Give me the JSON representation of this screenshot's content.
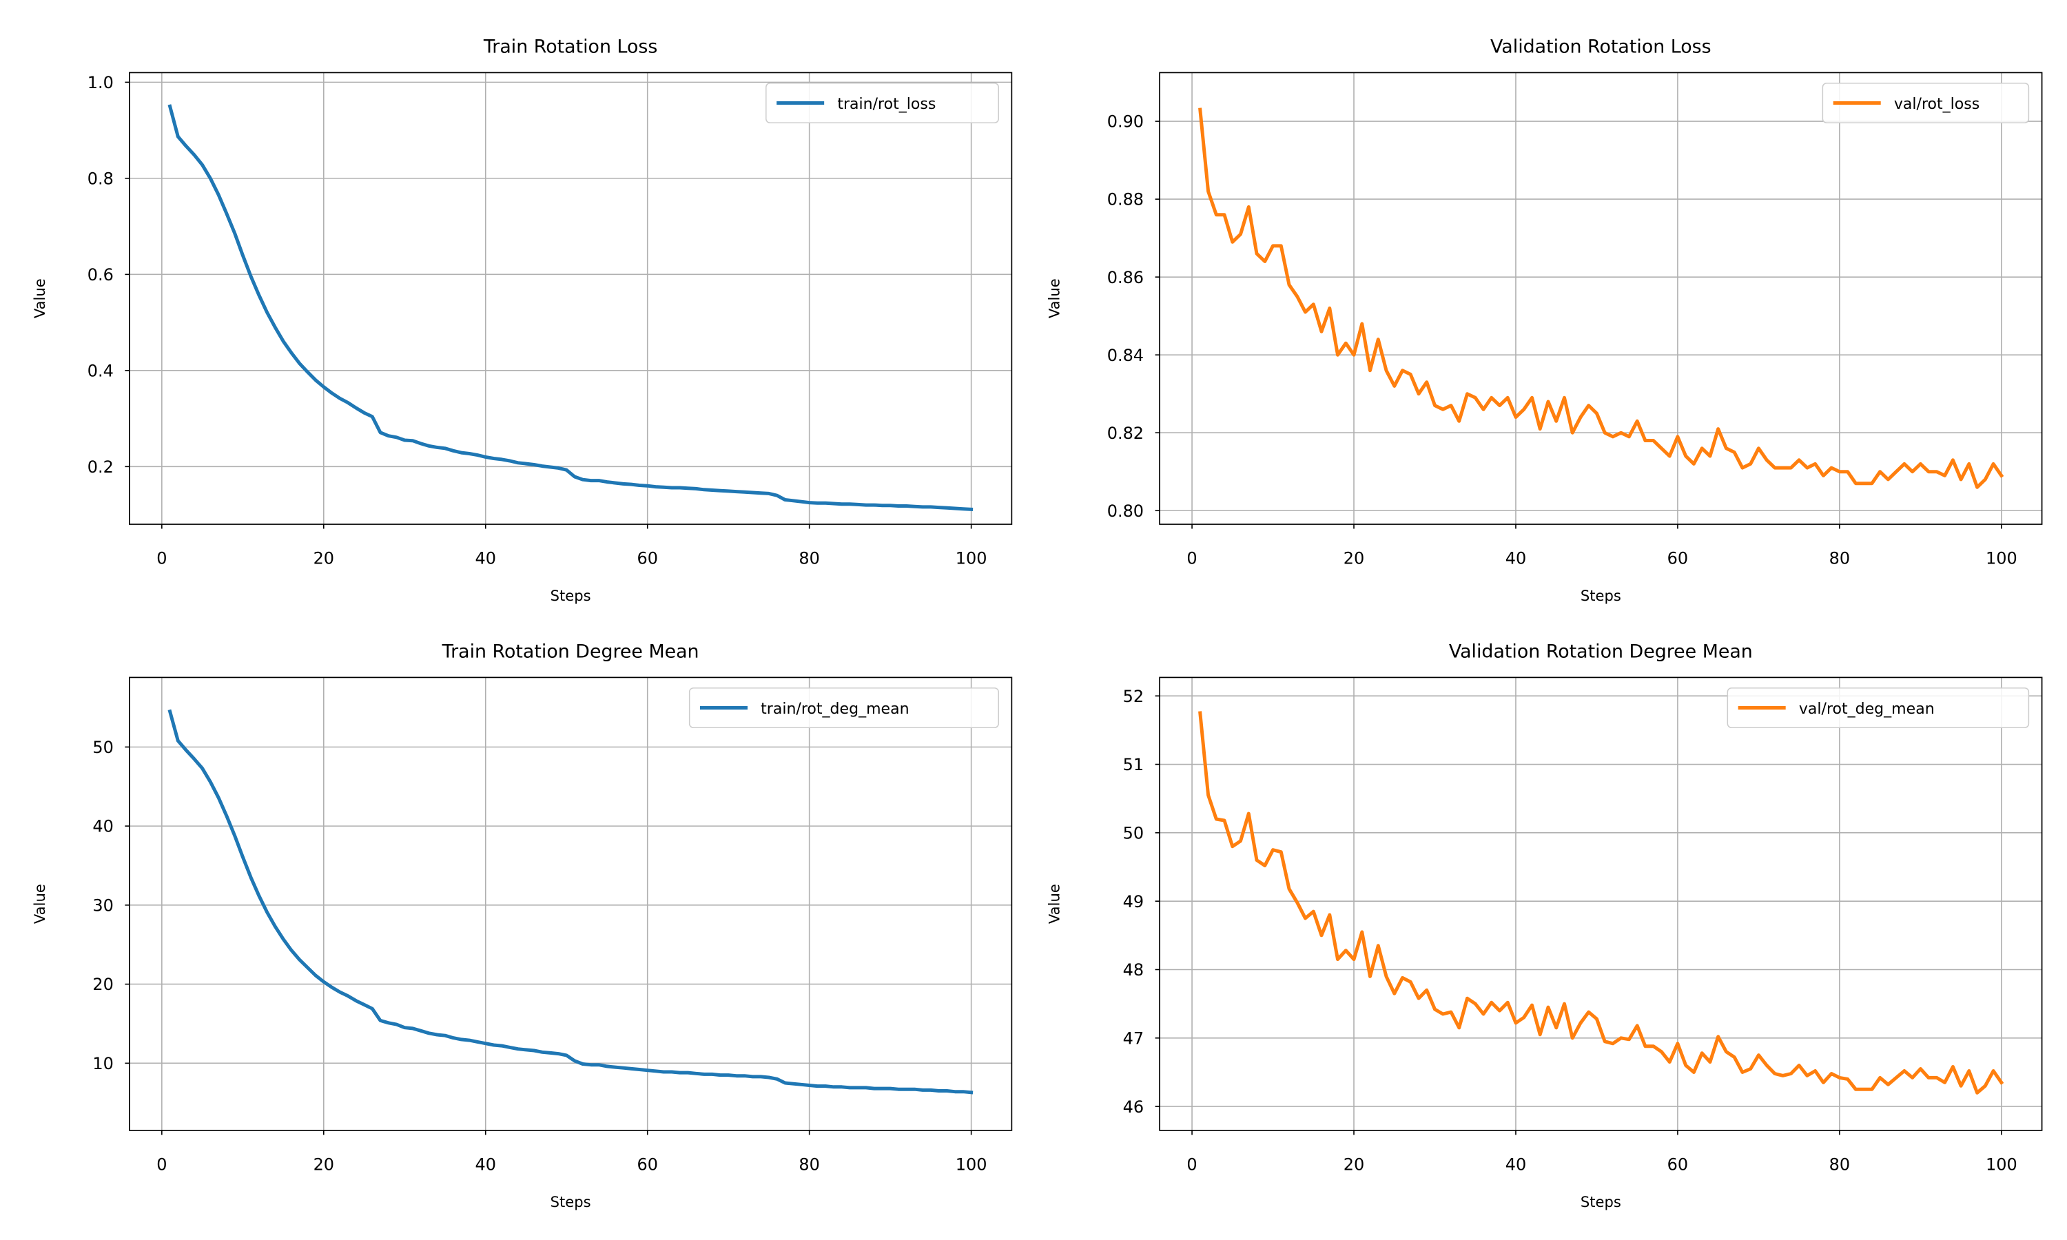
{
  "chart_data": [
    {
      "type": "line",
      "title": "Train Rotation Loss",
      "xlabel": "Steps",
      "ylabel": "Value",
      "xlim": [
        -4,
        105
      ],
      "ylim": [
        0.08,
        1.02
      ],
      "xticks": [
        0,
        20,
        40,
        60,
        80,
        100
      ],
      "yticks": [
        0.2,
        0.4,
        0.6,
        0.8,
        1.0
      ],
      "ytick_labels": [
        "0.2",
        "0.4",
        "0.6",
        "0.8",
        "1.0"
      ],
      "grid": true,
      "legend": "top-right",
      "series": [
        {
          "name": "train/rot_loss",
          "color": "#1f77b4",
          "x": [
            1,
            2,
            3,
            4,
            5,
            6,
            7,
            8,
            9,
            10,
            11,
            12,
            13,
            14,
            15,
            16,
            17,
            18,
            19,
            20,
            21,
            22,
            23,
            24,
            25,
            26,
            27,
            28,
            29,
            30,
            31,
            32,
            33,
            34,
            35,
            36,
            37,
            38,
            39,
            40,
            41,
            42,
            43,
            44,
            45,
            46,
            47,
            48,
            49,
            50,
            51,
            52,
            53,
            54,
            55,
            56,
            57,
            58,
            59,
            60,
            61,
            62,
            63,
            64,
            65,
            66,
            67,
            68,
            69,
            70,
            71,
            72,
            73,
            74,
            75,
            76,
            77,
            78,
            79,
            80,
            81,
            82,
            83,
            84,
            85,
            86,
            87,
            88,
            89,
            90,
            91,
            92,
            93,
            94,
            95,
            96,
            97,
            98,
            99,
            100
          ],
          "y": [
            0.95,
            0.887,
            0.867,
            0.849,
            0.828,
            0.8,
            0.766,
            0.727,
            0.686,
            0.64,
            0.596,
            0.557,
            0.521,
            0.49,
            0.461,
            0.437,
            0.415,
            0.397,
            0.38,
            0.366,
            0.353,
            0.342,
            0.333,
            0.322,
            0.312,
            0.304,
            0.271,
            0.264,
            0.261,
            0.255,
            0.254,
            0.248,
            0.243,
            0.24,
            0.238,
            0.233,
            0.229,
            0.227,
            0.224,
            0.22,
            0.217,
            0.215,
            0.212,
            0.208,
            0.206,
            0.204,
            0.201,
            0.199,
            0.197,
            0.193,
            0.179,
            0.173,
            0.171,
            0.171,
            0.168,
            0.166,
            0.164,
            0.163,
            0.161,
            0.16,
            0.158,
            0.157,
            0.156,
            0.156,
            0.155,
            0.154,
            0.152,
            0.151,
            0.15,
            0.149,
            0.148,
            0.147,
            0.146,
            0.145,
            0.144,
            0.14,
            0.131,
            0.129,
            0.127,
            0.125,
            0.124,
            0.124,
            0.123,
            0.122,
            0.122,
            0.121,
            0.12,
            0.12,
            0.119,
            0.119,
            0.118,
            0.118,
            0.117,
            0.116,
            0.116,
            0.115,
            0.114,
            0.113,
            0.112,
            0.111
          ]
        }
      ]
    },
    {
      "type": "line",
      "title": "Validation Rotation Loss",
      "xlabel": "Steps",
      "ylabel": "Value",
      "xlim": [
        -4,
        105
      ],
      "ylim": [
        0.7965,
        0.9125
      ],
      "xticks": [
        0,
        20,
        40,
        60,
        80,
        100
      ],
      "yticks": [
        0.8,
        0.82,
        0.84,
        0.86,
        0.88,
        0.9
      ],
      "ytick_labels": [
        "0.80",
        "0.82",
        "0.84",
        "0.86",
        "0.88",
        "0.90"
      ],
      "grid": true,
      "legend": "top-right",
      "series": [
        {
          "name": "val/rot_loss",
          "color": "#ff7f0e",
          "x": [
            1,
            2,
            3,
            4,
            5,
            6,
            7,
            8,
            9,
            10,
            11,
            12,
            13,
            14,
            15,
            16,
            17,
            18,
            19,
            20,
            21,
            22,
            23,
            24,
            25,
            26,
            27,
            28,
            29,
            30,
            31,
            32,
            33,
            34,
            35,
            36,
            37,
            38,
            39,
            40,
            41,
            42,
            43,
            44,
            45,
            46,
            47,
            48,
            49,
            50,
            51,
            52,
            53,
            54,
            55,
            56,
            57,
            58,
            59,
            60,
            61,
            62,
            63,
            64,
            65,
            66,
            67,
            68,
            69,
            70,
            71,
            72,
            73,
            74,
            75,
            76,
            77,
            78,
            79,
            80,
            81,
            82,
            83,
            84,
            85,
            86,
            87,
            88,
            89,
            90,
            91,
            92,
            93,
            94,
            95,
            96,
            97,
            98,
            99,
            100
          ],
          "y": [
            0.903,
            0.882,
            0.876,
            0.876,
            0.869,
            0.871,
            0.878,
            0.866,
            0.864,
            0.868,
            0.868,
            0.858,
            0.855,
            0.851,
            0.853,
            0.846,
            0.852,
            0.84,
            0.843,
            0.84,
            0.848,
            0.836,
            0.844,
            0.836,
            0.832,
            0.836,
            0.835,
            0.83,
            0.833,
            0.827,
            0.826,
            0.827,
            0.823,
            0.83,
            0.829,
            0.826,
            0.829,
            0.827,
            0.829,
            0.824,
            0.826,
            0.829,
            0.821,
            0.828,
            0.823,
            0.829,
            0.82,
            0.824,
            0.827,
            0.825,
            0.82,
            0.819,
            0.82,
            0.819,
            0.823,
            0.818,
            0.818,
            0.816,
            0.814,
            0.819,
            0.814,
            0.812,
            0.816,
            0.814,
            0.821,
            0.816,
            0.815,
            0.811,
            0.812,
            0.816,
            0.813,
            0.811,
            0.811,
            0.811,
            0.813,
            0.811,
            0.812,
            0.809,
            0.811,
            0.81,
            0.81,
            0.807,
            0.807,
            0.807,
            0.81,
            0.808,
            0.81,
            0.812,
            0.81,
            0.812,
            0.81,
            0.81,
            0.809,
            0.813,
            0.808,
            0.812,
            0.806,
            0.808,
            0.812,
            0.809
          ]
        }
      ]
    },
    {
      "type": "line",
      "title": "Train Rotation Degree Mean",
      "xlabel": "Steps",
      "ylabel": "Value",
      "xlim": [
        -4,
        105
      ],
      "ylim": [
        1.5,
        58.8
      ],
      "xticks": [
        0,
        20,
        40,
        60,
        80,
        100
      ],
      "yticks": [
        10,
        20,
        30,
        40,
        50
      ],
      "ytick_labels": [
        "10",
        "20",
        "30",
        "40",
        "50"
      ],
      "grid": true,
      "legend": "top-right",
      "series": [
        {
          "name": "train/rot_deg_mean",
          "color": "#1f77b4",
          "x": [
            1,
            2,
            3,
            4,
            5,
            6,
            7,
            8,
            9,
            10,
            11,
            12,
            13,
            14,
            15,
            16,
            17,
            18,
            19,
            20,
            21,
            22,
            23,
            24,
            25,
            26,
            27,
            28,
            29,
            30,
            31,
            32,
            33,
            34,
            35,
            36,
            37,
            38,
            39,
            40,
            41,
            42,
            43,
            44,
            45,
            46,
            47,
            48,
            49,
            50,
            51,
            52,
            53,
            54,
            55,
            56,
            57,
            58,
            59,
            60,
            61,
            62,
            63,
            64,
            65,
            66,
            67,
            68,
            69,
            70,
            71,
            72,
            73,
            74,
            75,
            76,
            77,
            78,
            79,
            80,
            81,
            82,
            83,
            84,
            85,
            86,
            87,
            88,
            89,
            90,
            91,
            92,
            93,
            94,
            95,
            96,
            97,
            98,
            99,
            100
          ],
          "y": [
            54.5,
            50.8,
            49.6,
            48.5,
            47.3,
            45.6,
            43.6,
            41.3,
            38.8,
            36.1,
            33.5,
            31.2,
            29.1,
            27.3,
            25.7,
            24.3,
            23.1,
            22.1,
            21.1,
            20.3,
            19.6,
            19.0,
            18.5,
            17.9,
            17.4,
            16.9,
            15.4,
            15.1,
            14.9,
            14.5,
            14.4,
            14.1,
            13.8,
            13.6,
            13.5,
            13.2,
            13.0,
            12.9,
            12.7,
            12.5,
            12.3,
            12.2,
            12.0,
            11.8,
            11.7,
            11.6,
            11.4,
            11.3,
            11.2,
            11.0,
            10.3,
            9.9,
            9.8,
            9.8,
            9.6,
            9.5,
            9.4,
            9.3,
            9.2,
            9.1,
            9.0,
            8.9,
            8.9,
            8.8,
            8.8,
            8.7,
            8.6,
            8.6,
            8.5,
            8.5,
            8.4,
            8.4,
            8.3,
            8.3,
            8.2,
            8.0,
            7.5,
            7.4,
            7.3,
            7.2,
            7.1,
            7.1,
            7.0,
            7.0,
            6.9,
            6.9,
            6.9,
            6.8,
            6.8,
            6.8,
            6.7,
            6.7,
            6.7,
            6.6,
            6.6,
            6.5,
            6.5,
            6.4,
            6.4,
            6.3
          ]
        }
      ]
    },
    {
      "type": "line",
      "title": "Validation Rotation Degree Mean",
      "xlabel": "Steps",
      "ylabel": "Value",
      "xlim": [
        -4,
        105
      ],
      "ylim": [
        45.65,
        52.27
      ],
      "xticks": [
        0,
        20,
        40,
        60,
        80,
        100
      ],
      "yticks": [
        46,
        47,
        48,
        49,
        50,
        51,
        52
      ],
      "ytick_labels": [
        "46",
        "47",
        "48",
        "49",
        "50",
        "51",
        "52"
      ],
      "grid": true,
      "legend": "top-right",
      "series": [
        {
          "name": "val/rot_deg_mean",
          "color": "#ff7f0e",
          "x": [
            1,
            2,
            3,
            4,
            5,
            6,
            7,
            8,
            9,
            10,
            11,
            12,
            13,
            14,
            15,
            16,
            17,
            18,
            19,
            20,
            21,
            22,
            23,
            24,
            25,
            26,
            27,
            28,
            29,
            30,
            31,
            32,
            33,
            34,
            35,
            36,
            37,
            38,
            39,
            40,
            41,
            42,
            43,
            44,
            45,
            46,
            47,
            48,
            49,
            50,
            51,
            52,
            53,
            54,
            55,
            56,
            57,
            58,
            59,
            60,
            61,
            62,
            63,
            64,
            65,
            66,
            67,
            68,
            69,
            70,
            71,
            72,
            73,
            74,
            75,
            76,
            77,
            78,
            79,
            80,
            81,
            82,
            83,
            84,
            85,
            86,
            87,
            88,
            89,
            90,
            91,
            92,
            93,
            94,
            95,
            96,
            97,
            98,
            99,
            100
          ],
          "y": [
            51.75,
            50.55,
            50.2,
            50.18,
            49.8,
            49.88,
            50.28,
            49.6,
            49.52,
            49.75,
            49.72,
            49.18,
            48.98,
            48.75,
            48.85,
            48.5,
            48.8,
            48.15,
            48.28,
            48.15,
            48.55,
            47.9,
            48.35,
            47.9,
            47.65,
            47.88,
            47.82,
            47.58,
            47.7,
            47.42,
            47.35,
            47.38,
            47.15,
            47.58,
            47.5,
            47.35,
            47.52,
            47.4,
            47.52,
            47.22,
            47.3,
            47.48,
            47.05,
            47.45,
            47.15,
            47.5,
            47.0,
            47.22,
            47.38,
            47.28,
            46.95,
            46.92,
            47.0,
            46.98,
            47.18,
            46.88,
            46.88,
            46.8,
            46.65,
            46.92,
            46.6,
            46.5,
            46.78,
            46.65,
            47.02,
            46.8,
            46.72,
            46.5,
            46.55,
            46.75,
            46.6,
            46.48,
            46.45,
            46.48,
            46.6,
            46.45,
            46.52,
            46.35,
            46.48,
            46.42,
            46.4,
            46.25,
            46.25,
            46.25,
            46.42,
            46.32,
            46.42,
            46.52,
            46.42,
            46.55,
            46.42,
            46.42,
            46.35,
            46.58,
            46.3,
            46.52,
            46.2,
            46.3,
            46.52,
            46.35
          ]
        }
      ]
    }
  ]
}
